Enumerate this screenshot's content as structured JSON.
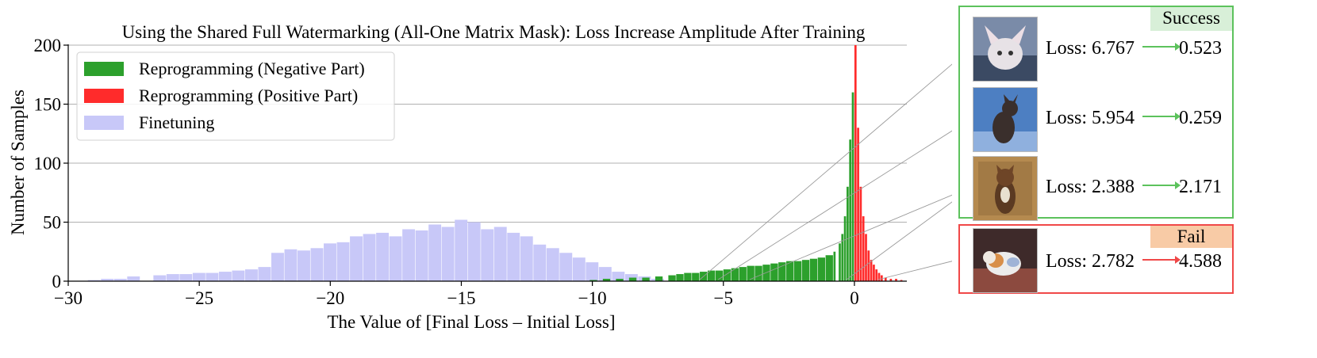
{
  "chart_data": {
    "type": "bar",
    "title": "Using the Shared Full Watermarking (All-One Matrix Mask): Loss Increase Amplitude After Training",
    "xlabel": "The Value of [Final Loss – Initial Loss]",
    "ylabel": "Number of Samples",
    "xlim": [
      -30,
      2
    ],
    "ylim": [
      0,
      200
    ],
    "xticks": [
      "−30",
      "−25",
      "−20",
      "−15",
      "−10",
      "−5",
      "0"
    ],
    "xtick_values": [
      -30,
      -25,
      -20,
      -15,
      -10,
      -5,
      0
    ],
    "yticks": [
      "0",
      "50",
      "100",
      "150",
      "200"
    ],
    "ytick_values": [
      0,
      50,
      100,
      150,
      200
    ],
    "grid": "horizontal",
    "legend_position": "top-left",
    "bin_width": 0.1,
    "series": [
      {
        "name": "Reprogramming (Negative Part)",
        "color": "#2ca02c",
        "bin_centers": [
          -9.95,
          -9.45,
          -8.95,
          -8.45,
          -7.95,
          -7.45,
          -6.95,
          -6.65,
          -6.35,
          -6.05,
          -5.75,
          -5.45,
          -5.15,
          -4.85,
          -4.55,
          -4.25,
          -3.95,
          -3.65,
          -3.35,
          -3.05,
          -2.75,
          -2.45,
          -2.15,
          -1.85,
          -1.55,
          -1.25,
          -0.95,
          -0.75,
          -0.55,
          -0.45,
          -0.35,
          -0.25,
          -0.15,
          -0.05
        ],
        "counts": [
          1,
          2,
          2,
          3,
          3,
          4,
          5,
          6,
          7,
          7,
          8,
          9,
          9,
          10,
          11,
          12,
          13,
          13,
          14,
          15,
          16,
          17,
          17,
          18,
          19,
          20,
          22,
          25,
          32,
          40,
          55,
          80,
          120,
          160
        ]
      },
      {
        "name": "Reprogramming (Positive Part)",
        "color": "#ff2b2b",
        "bin_centers": [
          0.05,
          0.15,
          0.25,
          0.35,
          0.45,
          0.55,
          0.65,
          0.75,
          0.85,
          0.95,
          1.05,
          1.2,
          1.4,
          1.6,
          1.8
        ],
        "counts": [
          200,
          130,
          80,
          55,
          40,
          26,
          18,
          14,
          10,
          7,
          5,
          3,
          2,
          2,
          1
        ]
      },
      {
        "name": "Finetuning",
        "color": "#c8c8f8",
        "bin_centers": [
          -29.0,
          -28.5,
          -28.0,
          -27.5,
          -26.5,
          -26.0,
          -25.5,
          -25.0,
          -24.5,
          -24.0,
          -23.5,
          -23.0,
          -22.5,
          -22.0,
          -21.5,
          -21.0,
          -20.5,
          -20.0,
          -19.5,
          -19.0,
          -18.5,
          -18.0,
          -17.5,
          -17.0,
          -16.5,
          -16.0,
          -15.5,
          -15.0,
          -14.5,
          -14.0,
          -13.5,
          -13.0,
          -12.5,
          -12.0,
          -11.5,
          -11.0,
          -10.5,
          -10.0,
          -9.5,
          -9.0,
          -8.5,
          -8.0,
          -7.5
        ],
        "counts": [
          1,
          2,
          2,
          4,
          5,
          6,
          6,
          7,
          7,
          8,
          9,
          10,
          12,
          24,
          27,
          26,
          28,
          32,
          33,
          38,
          40,
          41,
          38,
          44,
          43,
          48,
          46,
          52,
          50,
          44,
          46,
          41,
          38,
          31,
          28,
          24,
          20,
          16,
          12,
          8,
          6,
          4,
          2
        ]
      }
    ]
  },
  "panels": {
    "success": {
      "label": "Success",
      "color": "#5cc25c",
      "tag_bg": "#d8efd8",
      "rows": [
        {
          "loss_label": "Loss: 6.767",
          "final": "0.523",
          "image": "sphynx-cat-photo"
        },
        {
          "loss_label": "Loss: 5.954",
          "final": "0.259",
          "image": "dark-cat-on-blue-photo"
        },
        {
          "loss_label": "Loss: 2.388",
          "final": "2.171",
          "image": "tabby-cat-on-carpet-photo"
        }
      ]
    },
    "fail": {
      "label": "Fail",
      "color": "#f04848",
      "tag_bg": "#f8cba6",
      "rows": [
        {
          "loss_label": "Loss: 2.782",
          "final": "4.588",
          "image": "calico-cat-on-blanket-photo"
        }
      ]
    }
  },
  "connector_targets_x": [
    -5.9,
    -5.2,
    -4.0,
    -0.3,
    0.9
  ]
}
